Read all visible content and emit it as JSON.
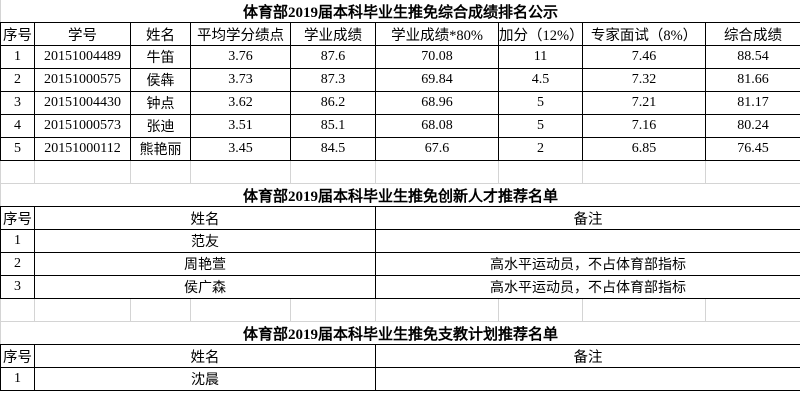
{
  "table1": {
    "title": "体育部2019届本科毕业生推免综合成绩排名公示",
    "headers": [
      "序号",
      "学号",
      "姓名",
      "平均学分绩点",
      "学业成绩",
      "学业成绩*80%",
      "加分（12%）",
      "专家面试（8%）",
      "综合成绩"
    ],
    "rows": [
      [
        "1",
        "20151004489",
        "牛笛",
        "3.76",
        "87.6",
        "70.08",
        "11",
        "7.46",
        "88.54"
      ],
      [
        "2",
        "20151000575",
        "侯犇",
        "3.73",
        "87.3",
        "69.84",
        "4.5",
        "7.32",
        "81.66"
      ],
      [
        "3",
        "20151004430",
        "钟点",
        "3.62",
        "86.2",
        "68.96",
        "5",
        "7.21",
        "81.17"
      ],
      [
        "4",
        "20151000573",
        "张迪",
        "3.51",
        "85.1",
        "68.08",
        "5",
        "7.16",
        "80.24"
      ],
      [
        "5",
        "20151000112",
        "熊艳丽",
        "3.45",
        "84.5",
        "67.6",
        "2",
        "6.85",
        "76.45"
      ]
    ]
  },
  "table2": {
    "title": "体育部2019届本科毕业生推免创新人才推荐名单",
    "headers": [
      "序号",
      "姓名",
      "备注"
    ],
    "rows": [
      [
        "1",
        "范友",
        ""
      ],
      [
        "2",
        "周艳萱",
        "高水平运动员，不占体育部指标"
      ],
      [
        "3",
        "侯广森",
        "高水平运动员，不占体育部指标"
      ]
    ]
  },
  "table3": {
    "title": "体育部2019届本科毕业生推免支教计划推荐名单",
    "headers": [
      "序号",
      "姓名",
      "备注"
    ],
    "rows": [
      [
        "1",
        "沈晨",
        ""
      ]
    ]
  }
}
